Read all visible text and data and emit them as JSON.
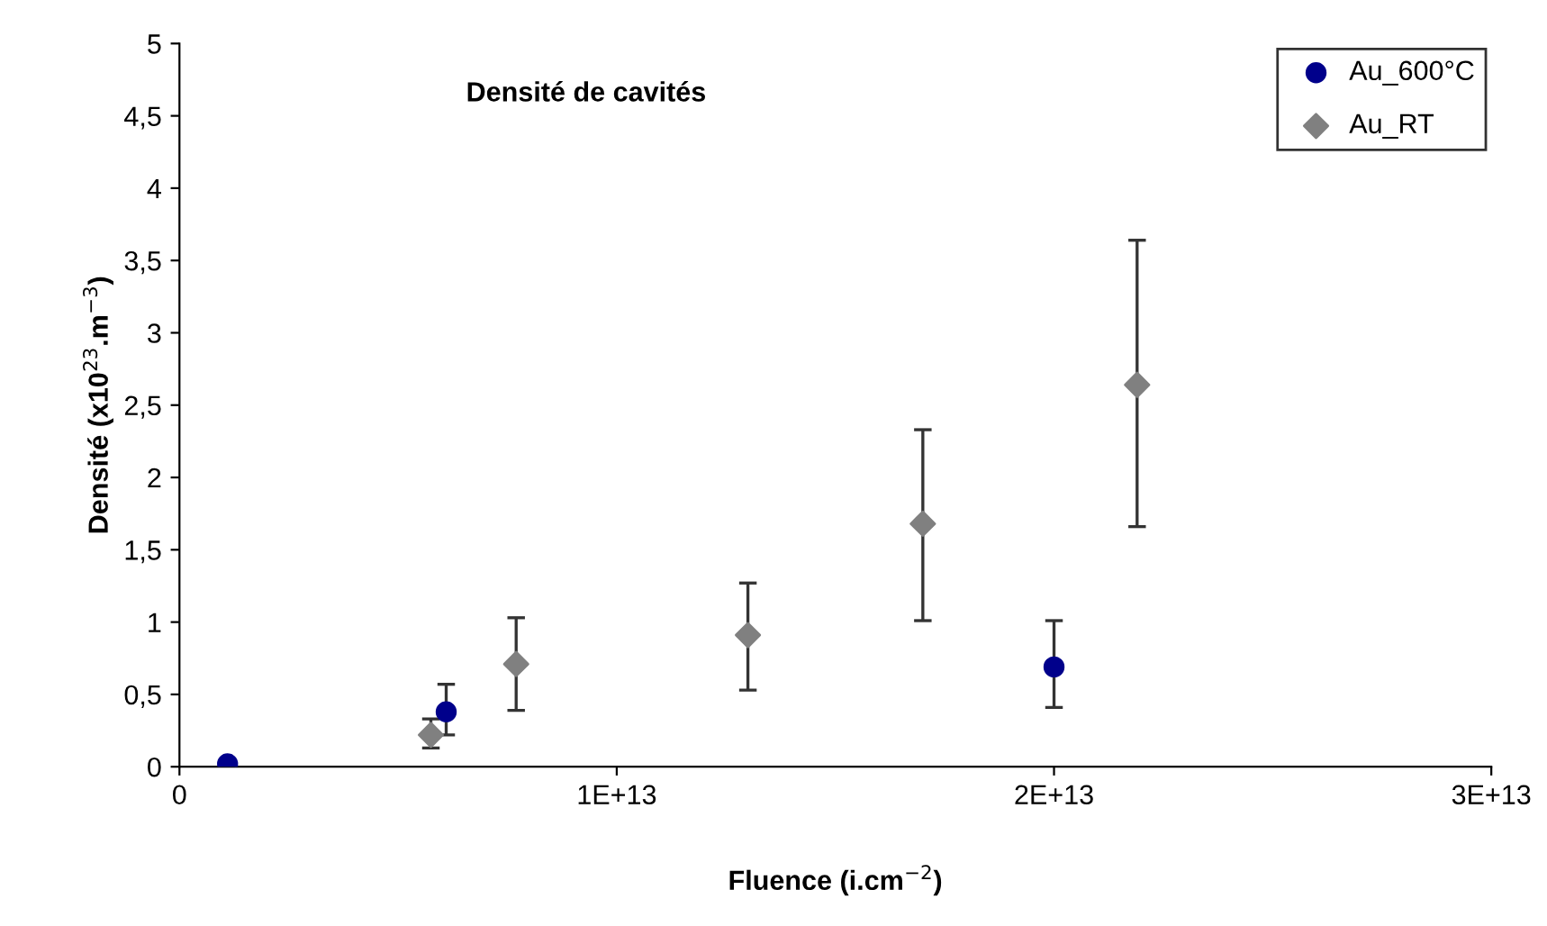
{
  "chart_data": {
    "type": "scatter",
    "title": "Densité de cavités",
    "xlabel": "Fluence (i.cm$^{−2}$)",
    "ylabel": "Densité (x10$^{23}$.m$^{−3}$)",
    "xlim": [
      0,
      30000000000000.0
    ],
    "xticks": [
      0,
      {
        "value": 10000000000000.0,
        "label": "1E+13"
      },
      {
        "value": 20000000000000.0,
        "label": "2E+13"
      },
      {
        "value": 30000000000000.0,
        "label": "3E+13"
      }
    ],
    "ylim": [
      0,
      5
    ],
    "yticks": [
      0,
      {
        "value": 0.5,
        "label": "0,5"
      },
      1,
      {
        "value": 1.5,
        "label": "1,5"
      },
      2,
      {
        "value": 2.5,
        "label": "2,5"
      },
      3,
      {
        "value": 3.5,
        "label": "3,5"
      },
      4,
      {
        "value": 4.5,
        "label": "4,5"
      },
      5
    ],
    "grid": false,
    "legend": "top right",
    "series": [
      {
        "name": "Au_600°C",
        "color": "#00008b",
        "marker": "circle",
        "x": [
          1100000000000.0,
          6100000000000.0,
          20000000000000.0
        ],
        "values": [
          0.02,
          0.38,
          0.69
        ],
        "errors": [
          null,
          [
            0.22,
            0.57
          ],
          [
            0.41,
            1.01
          ]
        ]
      },
      {
        "name": "Au_RT",
        "color": "#808080",
        "marker": "diamond",
        "x": [
          5750000000000.0,
          7700000000000.0,
          13000000000000.0,
          17000000000000.0,
          21900000000000.0
        ],
        "values": [
          0.22,
          0.71,
          0.91,
          1.68,
          2.64
        ],
        "errors": [
          [
            0.13,
            0.33
          ],
          [
            0.39,
            1.03
          ],
          [
            0.53,
            1.27
          ],
          [
            1.01,
            2.33
          ],
          [
            1.66,
            3.64
          ]
        ]
      }
    ]
  }
}
